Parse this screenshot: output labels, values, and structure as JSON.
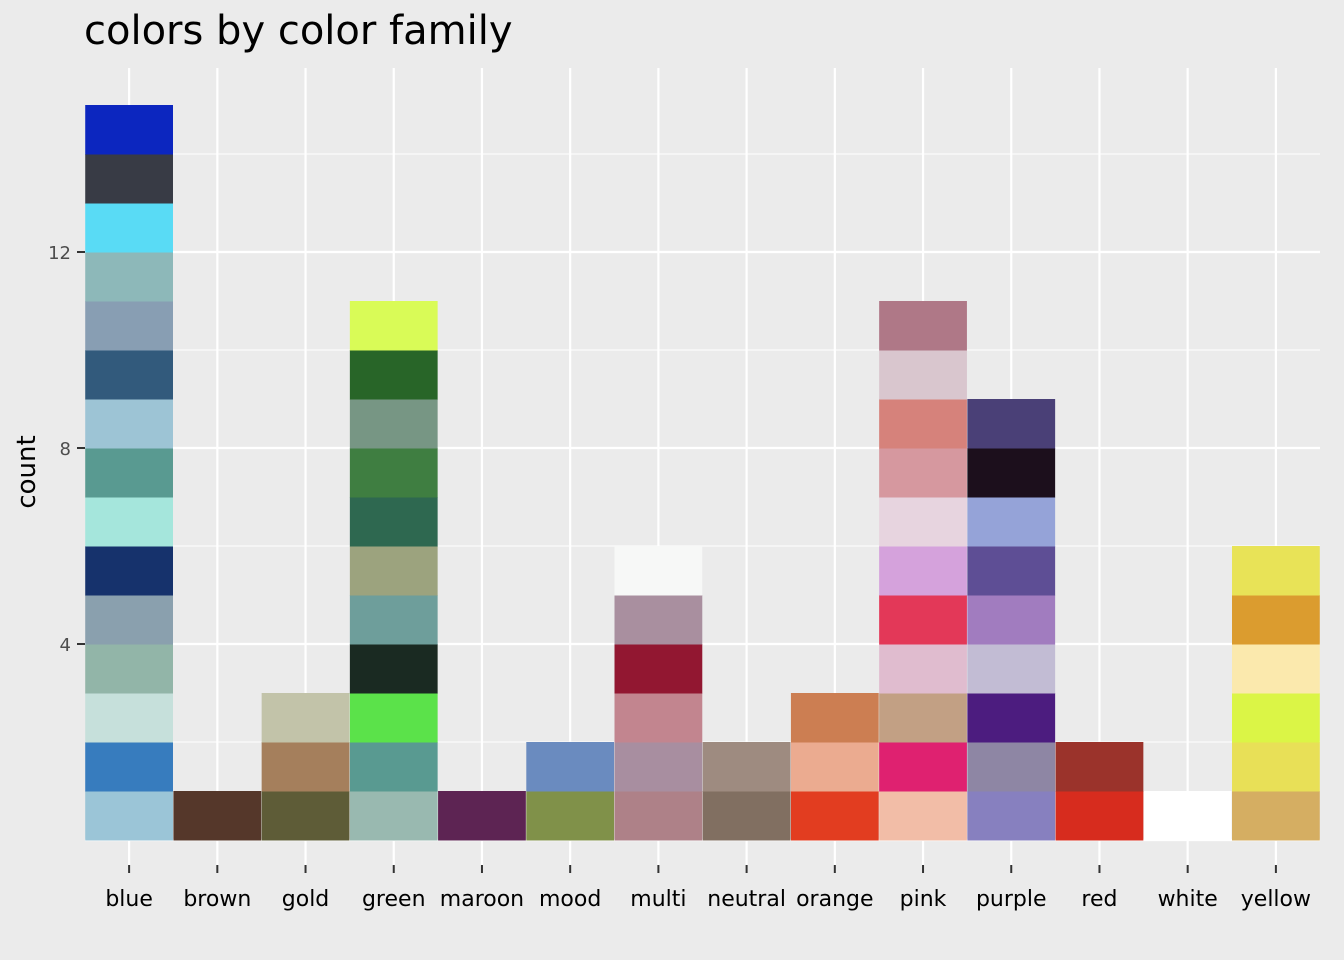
{
  "chart_data": {
    "type": "bar",
    "title": "colors by color family",
    "xlabel": "",
    "ylabel": "count",
    "ylim": [
      0,
      15.5
    ],
    "yticks": [
      4,
      8,
      12
    ],
    "grid": true,
    "legend": "none",
    "categories": [
      "blue",
      "brown",
      "gold",
      "green",
      "maroon",
      "mood",
      "multi",
      "neutral",
      "orange",
      "pink",
      "purple",
      "red",
      "white",
      "yellow"
    ],
    "values": [
      15,
      1,
      3,
      11,
      1,
      2,
      6,
      2,
      3,
      11,
      9,
      2,
      1,
      6
    ],
    "stacks": [
      [
        "#9bc5d7",
        "#377cbe",
        "#c6e0db",
        "#92b5a8",
        "#8aa0ae",
        "#16326c",
        "#a5e6dc",
        "#599a91",
        "#9dc4d5",
        "#325a7c",
        "#889eb3",
        "#8db8b9",
        "#59dbf5",
        "#383b45",
        "#0c26bf"
      ],
      [
        "#55372a"
      ],
      [
        "#5e5c37",
        "#a57f5c",
        "#c2c3a9"
      ],
      [
        "#99b9b0",
        "#599a91",
        "#5be24a",
        "#1a2a22",
        "#6e9e9b",
        "#9ca37e",
        "#2e6850",
        "#3f7e41",
        "#779684",
        "#286528",
        "#d9fb57"
      ],
      [
        "#5d2453"
      ],
      [
        "#809149",
        "#6a8bbf"
      ],
      [
        "#ae8188",
        "#a88ea0",
        "#c2858f",
        "#921731",
        "#a98f9f",
        "#f7f8f7"
      ],
      [
        "#816f61",
        "#9e8b80"
      ],
      [
        "#e23d20",
        "#ebab90",
        "#cc7e52"
      ],
      [
        "#f2bda7",
        "#df2170",
        "#c2a084",
        "#e0bccf",
        "#e33858",
        "#d5a2dc",
        "#e7d4df",
        "#d6989f",
        "#d6827b",
        "#d9c6ce",
        "#af7887"
      ],
      [
        "#8780bf",
        "#8e86a4",
        "#4c1c7f",
        "#c2bcd4",
        "#a17cbf",
        "#5e4e95",
        "#95a3d8",
        "#1c0f1c",
        "#4a4077"
      ],
      [
        "#d72c1e",
        "#9b332b"
      ],
      [
        "#ffffff"
      ],
      [
        "#d5ae62",
        "#e8e057",
        "#dbf546",
        "#fbe9ad",
        "#db9c2f",
        "#e8e357"
      ]
    ]
  }
}
